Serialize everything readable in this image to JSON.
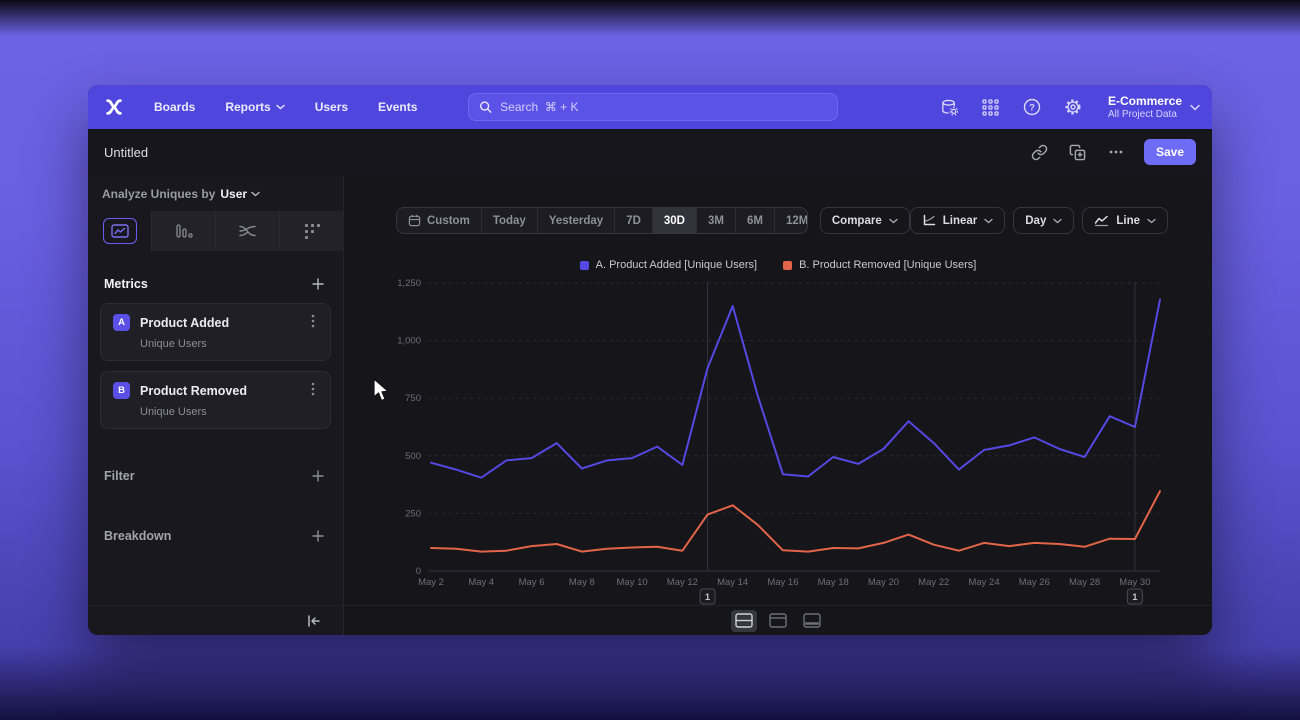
{
  "nav": {
    "menu": [
      {
        "label": "Boards"
      },
      {
        "label": "Reports"
      },
      {
        "label": "Users"
      },
      {
        "label": "Events"
      }
    ],
    "search_placeholder": "Search  ⌘ + K",
    "project": {
      "name": "E-Commerce",
      "sub": "All Project Data"
    }
  },
  "header": {
    "title": "Untitled",
    "save_label": "Save"
  },
  "sidebar": {
    "analyze_prefix": "Analyze Uniques by",
    "analyze_value": "User",
    "metrics_title": "Metrics",
    "metrics": [
      {
        "badge": "A",
        "title": "Product Added",
        "subtitle": "Unique Users"
      },
      {
        "badge": "B",
        "title": "Product Removed",
        "subtitle": "Unique Users"
      }
    ],
    "filter_title": "Filter",
    "breakdown_title": "Breakdown"
  },
  "controls": {
    "ranges": [
      "Custom",
      "Today",
      "Yesterday",
      "7D",
      "30D",
      "3M",
      "6M",
      "12M"
    ],
    "active_range": "30D",
    "compare_label": "Compare",
    "scale_label": "Linear",
    "interval_label": "Day",
    "chart_type_label": "Line"
  },
  "legend": [
    {
      "label": "A. Product Added [Unique Users]"
    },
    {
      "label": "B. Product Removed [Unique Users]"
    }
  ],
  "colors": {
    "accent": "#5b50e6",
    "nav_bg": "#4f47dd",
    "save_bg": "#6e6bf6",
    "series_a": "#5449e2",
    "series_b": "#e2654a"
  },
  "chart_data": {
    "type": "line",
    "title": "",
    "xlabel": "",
    "ylabel": "Unique Users",
    "ylim": [
      0,
      1250
    ],
    "grid": true,
    "legend_position": "top-center",
    "x_count": 30,
    "x": [
      "May 2",
      "May 3",
      "May 4",
      "May 5",
      "May 6",
      "May 7",
      "May 8",
      "May 9",
      "May 10",
      "May 11",
      "May 12",
      "May 13",
      "May 14",
      "May 15",
      "May 16",
      "May 17",
      "May 18",
      "May 19",
      "May 20",
      "May 21",
      "May 22",
      "May 23",
      "May 24",
      "May 25",
      "May 26",
      "May 27",
      "May 28",
      "May 29",
      "May 30",
      "May 31"
    ],
    "x_tick_labels": [
      "May 2",
      "May 4",
      "May 6",
      "May 8",
      "May 10",
      "May 12",
      "May 14",
      "May 16",
      "May 18",
      "May 20",
      "May 22",
      "May 24",
      "May 26",
      "May 28",
      "May 30"
    ],
    "y_ticks": [
      0,
      250,
      500,
      750,
      1000,
      1250
    ],
    "y_tick_labels": [
      "0",
      "250",
      "500",
      "750",
      "1,000",
      "1,250"
    ],
    "series": [
      {
        "id": "a",
        "name": "A. Product Added [Unique Users]",
        "color": "#5449e2",
        "values": [
          470,
          440,
          405,
          480,
          490,
          555,
          445,
          480,
          490,
          540,
          460,
          880,
          1150,
          760,
          420,
          410,
          495,
          465,
          530,
          650,
          555,
          440,
          525,
          545,
          580,
          530,
          495,
          672,
          625,
          1178
        ]
      },
      {
        "id": "b",
        "name": "B. Product Removed [Unique Users]",
        "color": "#e2654a",
        "values": [
          100,
          97,
          84,
          88,
          108,
          117,
          84,
          97,
          102,
          105,
          88,
          245,
          285,
          200,
          90,
          84,
          100,
          98,
          122,
          158,
          114,
          88,
          122,
          108,
          122,
          117,
          105,
          140,
          139,
          347
        ]
      }
    ],
    "annotations": [
      {
        "index": 11,
        "badge": "1"
      },
      {
        "index": 28,
        "badge": "1"
      }
    ]
  }
}
